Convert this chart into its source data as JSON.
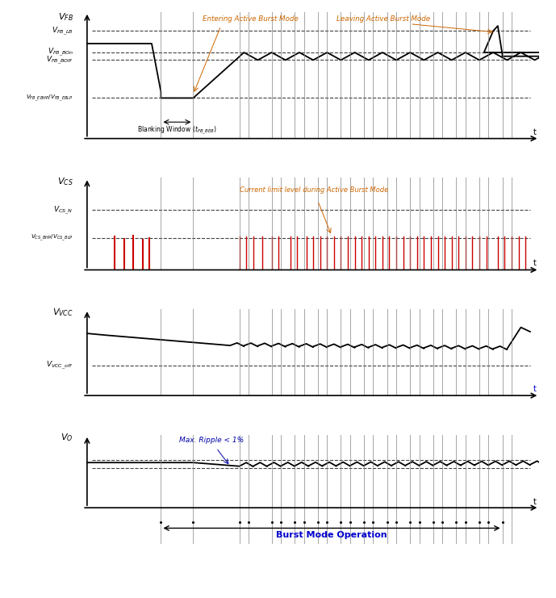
{
  "fig_width": 6.89,
  "fig_height": 7.41,
  "dpi": 100,
  "bg_color": "#ffffff",
  "vline_color": "#808080",
  "dashed_color": "#404040",
  "signal_color": "#000000",
  "red_color": "#cc0000",
  "blue_text_color": "#0000aa",
  "annotation_color": "#cc6600",
  "burst_mode_label": "Burst Mode Operation",
  "vfb_label": "$V_{FB}$",
  "vcs_label": "$V_{CS}$",
  "vvcc_label": "$V_{VCC}$",
  "vo_label": "$V_O$",
  "vfb_lb": "$V_{FB\\_LB}$",
  "vfb_bon": "$V_{FB\\_BOn}$",
  "vfb_boff": "$V_{FB\\_BOff}$",
  "vfb_ebhp": "$V_{FB\\_EBHP}/V_{FB\\_EBLP}$",
  "vcs_n": "$V_{CS\\_N}$",
  "vcs_bhp": "$V_{CS\\_BHP}/V_{CS\\_BLP}$",
  "vvcc_off": "$V_{VCC\\_off}$",
  "entering_label": "Entering Active Burst Mode",
  "leaving_label": "Leaving Active Burst Mode",
  "blanking_label": "Blanking Window ($t_{FB\\_BEB}$)",
  "current_limit_label": "Current limit level during Active Burst Mode",
  "ripple_label": "Max. Ripple < 1%",
  "t_label": "t"
}
